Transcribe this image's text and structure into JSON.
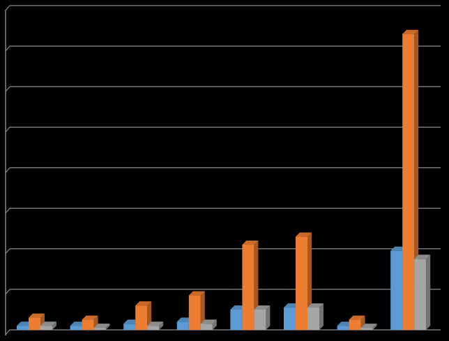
{
  "chart_data": {
    "type": "bar3d",
    "categories": [
      null,
      null,
      null,
      null,
      null,
      null,
      null,
      null
    ],
    "series": [
      {
        "color": "#5b9bd5",
        "values": [
          0.1,
          0.1,
          0.15,
          0.2,
          0.5,
          0.55,
          0.1,
          1.95
        ]
      },
      {
        "color": "#ed7d31",
        "values": [
          0.3,
          0.25,
          0.6,
          0.85,
          2.1,
          2.3,
          0.25,
          7.3
        ]
      },
      {
        "color": "#a5a5a5",
        "values": [
          0.1,
          0.05,
          0.1,
          0.15,
          0.5,
          0.55,
          0.05,
          1.75
        ]
      }
    ],
    "ylim": [
      0,
      8
    ],
    "yticks": [
      0,
      1,
      2,
      3,
      4,
      5,
      6,
      7,
      8
    ],
    "grid": true
  }
}
